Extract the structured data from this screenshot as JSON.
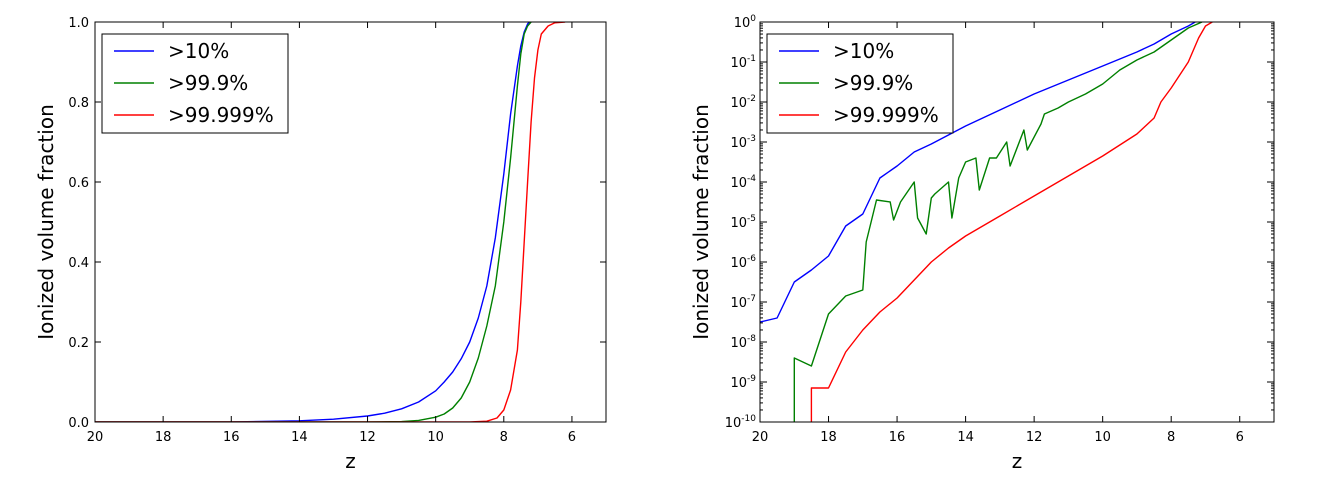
{
  "chart_data": [
    {
      "type": "line",
      "title": "",
      "xlabel": "z",
      "ylabel": "Ionized volume fraction",
      "xlim": [
        20,
        5
      ],
      "ylim": [
        0,
        1
      ],
      "yscale": "linear",
      "xticks": [
        20,
        18,
        16,
        14,
        12,
        10,
        8,
        6
      ],
      "xtick_labels": [
        "20",
        "18",
        "16",
        "14",
        "12",
        "10",
        "8",
        "6"
      ],
      "yticks": [
        0,
        0.2,
        0.4,
        0.6,
        0.8,
        1.0
      ],
      "ytick_labels": [
        "0.0",
        "0.2",
        "0.4",
        "0.6",
        "0.8",
        "1.0"
      ],
      "grid": false,
      "legend": "top-left",
      "series": [
        {
          "name": ">10%",
          "color": "#0000ff",
          "x": [
            20,
            18,
            16,
            14,
            13,
            12,
            11.5,
            11,
            10.5,
            10,
            9.75,
            9.5,
            9.25,
            9,
            8.75,
            8.5,
            8.25,
            8,
            7.8,
            7.6,
            7.5,
            7.4,
            7.3,
            7.25
          ],
          "y": [
            0,
            0,
            0,
            0.003,
            0.007,
            0.015,
            0.022,
            0.033,
            0.05,
            0.078,
            0.1,
            0.125,
            0.158,
            0.2,
            0.26,
            0.34,
            0.46,
            0.62,
            0.77,
            0.89,
            0.94,
            0.975,
            0.995,
            1.0
          ]
        },
        {
          "name": ">99.9%",
          "color": "#008000",
          "x": [
            20,
            12,
            11,
            10.5,
            10,
            9.75,
            9.5,
            9.25,
            9,
            8.75,
            8.5,
            8.25,
            8,
            7.8,
            7.6,
            7.5,
            7.4,
            7.3,
            7.2
          ],
          "y": [
            0,
            0,
            0.001,
            0.004,
            0.012,
            0.02,
            0.035,
            0.06,
            0.1,
            0.16,
            0.24,
            0.34,
            0.5,
            0.66,
            0.84,
            0.92,
            0.97,
            0.99,
            1.0
          ]
        },
        {
          "name": ">99.999%",
          "color": "#ff0000",
          "x": [
            20,
            9,
            8.5,
            8.2,
            8,
            7.8,
            7.6,
            7.5,
            7.4,
            7.3,
            7.2,
            7.1,
            7.0,
            6.9,
            6.7,
            6.5,
            6.2
          ],
          "y": [
            0,
            0,
            0.002,
            0.01,
            0.03,
            0.08,
            0.18,
            0.3,
            0.45,
            0.6,
            0.75,
            0.86,
            0.93,
            0.97,
            0.99,
            0.998,
            1.0
          ]
        }
      ]
    },
    {
      "type": "line",
      "title": "",
      "xlabel": "z",
      "ylabel": "Ionized volume fraction",
      "xlim": [
        20,
        5
      ],
      "ylim_log10": [
        -10,
        0
      ],
      "yscale": "log",
      "xticks": [
        20,
        18,
        16,
        14,
        12,
        10,
        8,
        6
      ],
      "xtick_labels": [
        "20",
        "18",
        "16",
        "14",
        "12",
        "10",
        "8",
        "6"
      ],
      "yticks_log10": [
        -10,
        -9,
        -8,
        -7,
        -6,
        -5,
        -4,
        -3,
        -2,
        -1,
        0
      ],
      "ytick_base": "10",
      "ytick_exponents": [
        "-10",
        "-9",
        "-8",
        "-7",
        "-6",
        "-5",
        "-4",
        "-3",
        "-2",
        "-1",
        "0"
      ],
      "grid": false,
      "legend": "top-left",
      "series": [
        {
          "name": ">10%",
          "color": "#0000ff",
          "x": [
            20,
            19.5,
            19,
            18.5,
            18,
            17.5,
            17,
            16.5,
            16,
            15.5,
            15,
            14,
            13,
            12,
            11,
            10,
            9,
            8.5,
            8,
            7.5,
            7.3
          ],
          "log10y": [
            -7.5,
            -7.4,
            -6.5,
            -6.2,
            -5.85,
            -5.1,
            -4.8,
            -3.9,
            -3.6,
            -3.25,
            -3.05,
            -2.6,
            -2.2,
            -1.8,
            -1.45,
            -1.1,
            -0.75,
            -0.55,
            -0.3,
            -0.1,
            0
          ]
        },
        {
          "name": ">99.9%",
          "color": "#008000",
          "x": [
            19,
            19,
            18.5,
            18,
            17.5,
            17,
            16.9,
            16.6,
            16.2,
            16.1,
            15.9,
            15.5,
            15.4,
            15.15,
            15.0,
            14.9,
            14.5,
            14.4,
            14.2,
            14.0,
            13.7,
            13.6,
            13.3,
            13.1,
            12.8,
            12.7,
            12.3,
            12.2,
            11.8,
            11.7,
            11.3,
            11.0,
            10.5,
            10.0,
            9.5,
            9.0,
            8.5,
            8.0,
            7.5,
            7.1
          ],
          "log10y": [
            -10,
            -8.4,
            -8.6,
            -7.3,
            -6.85,
            -6.7,
            -5.5,
            -4.45,
            -4.5,
            -4.95,
            -4.5,
            -4.0,
            -4.9,
            -5.3,
            -4.4,
            -4.3,
            -4.0,
            -4.9,
            -3.9,
            -3.5,
            -3.4,
            -4.2,
            -3.4,
            -3.4,
            -3.0,
            -3.6,
            -2.7,
            -3.2,
            -2.55,
            -2.3,
            -2.15,
            -2.0,
            -1.8,
            -1.55,
            -1.2,
            -0.95,
            -0.75,
            -0.45,
            -0.15,
            0
          ]
        },
        {
          "name": ">99.999%",
          "color": "#ff0000",
          "x": [
            18.5,
            18.5,
            18,
            17.5,
            17,
            16.5,
            16,
            15.5,
            15,
            14.5,
            14,
            13,
            12,
            11,
            10,
            9,
            8.5,
            8.3,
            8.0,
            7.5,
            7.2,
            7.0,
            6.8
          ],
          "log10y": [
            -10,
            -9.15,
            -9.15,
            -8.25,
            -7.7,
            -7.25,
            -6.9,
            -6.45,
            -6.0,
            -5.65,
            -5.35,
            -4.85,
            -4.35,
            -3.85,
            -3.35,
            -2.8,
            -2.4,
            -2.0,
            -1.65,
            -1.0,
            -0.4,
            -0.1,
            0
          ]
        }
      ]
    }
  ]
}
